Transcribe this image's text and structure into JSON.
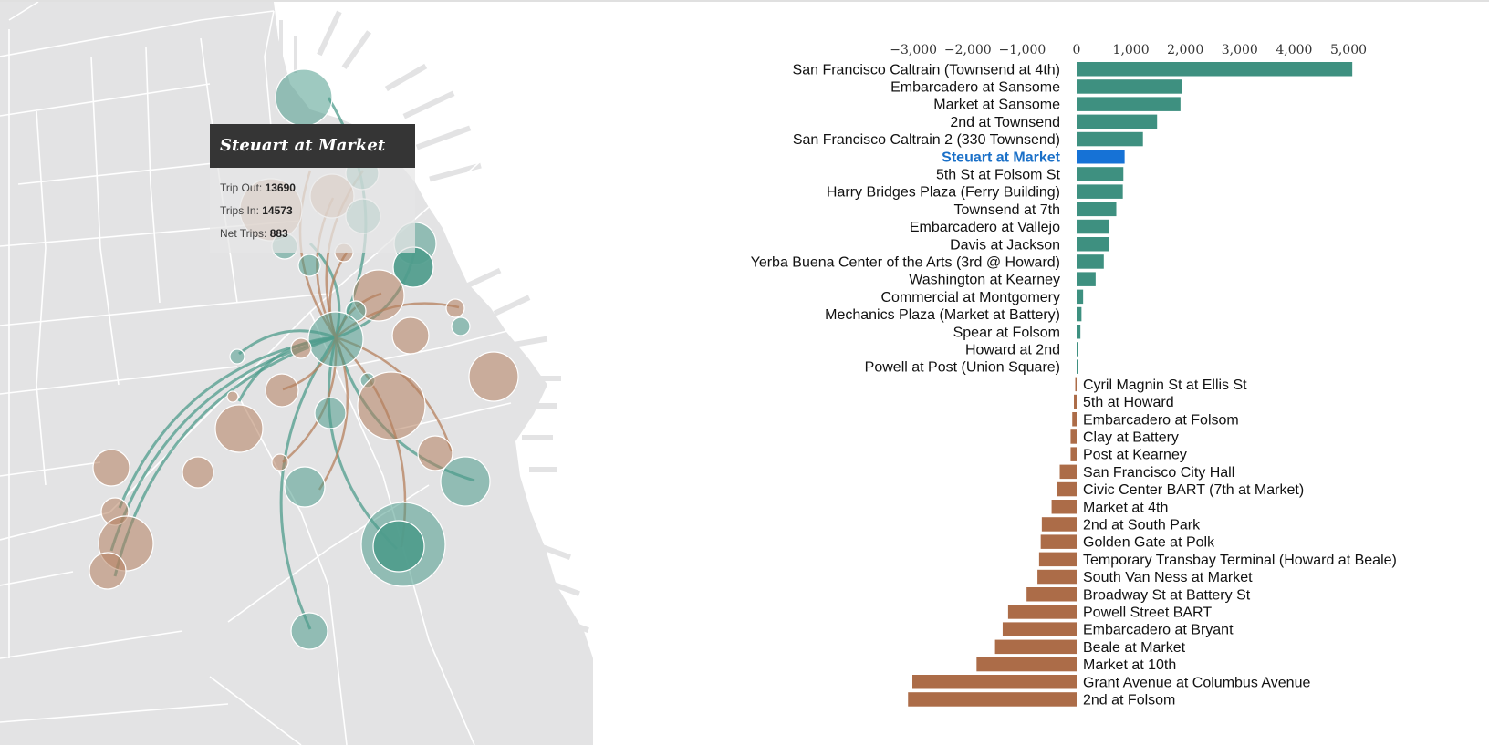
{
  "colors": {
    "positive": "#3e9080",
    "negative": "#ac6c48",
    "highlight_bar": "#1672d6",
    "highlight_text": "#1a70c8",
    "land": "#e3e3e4",
    "street": "#ffffff",
    "flow_out": "#4f9c8c",
    "flow_in": "#b5805e"
  },
  "tooltip": {
    "station": "Steuart at Market",
    "trip_out_label": "Trip Out:",
    "trip_out_value": "13690",
    "trips_in_label": "Trips In:",
    "trips_in_value": "14573",
    "net_label": "Net Trips:",
    "net_value": "883"
  },
  "chart_data": {
    "type": "bar",
    "orientation": "horizontal",
    "title": "",
    "xlabel": "",
    "ylabel": "",
    "xlim": [
      -3000,
      5000
    ],
    "x_ticks": [
      "−3,000",
      "−2,000",
      "−1,000",
      "0",
      "1,000",
      "2,000",
      "3,000",
      "4,000",
      "5,000"
    ],
    "x_tick_values": [
      -3000,
      -2000,
      -1000,
      0,
      1000,
      2000,
      3000,
      4000,
      5000
    ],
    "highlighted": "Steuart at Market",
    "categories": [
      "San Francisco Caltrain (Townsend at 4th)",
      "Embarcadero at Sansome",
      "Market at Sansome",
      "2nd at Townsend",
      "San Francisco Caltrain 2 (330 Townsend)",
      "Steuart at Market",
      "5th St at Folsom St",
      "Harry Bridges Plaza (Ferry Building)",
      "Townsend at 7th",
      "Embarcadero at Vallejo",
      "Davis at Jackson",
      "Yerba Buena Center of the Arts (3rd @ Howard)",
      "Washington at Kearney",
      "Commercial at Montgomery",
      "Mechanics Plaza (Market at Battery)",
      "Spear at Folsom",
      "Howard at 2nd",
      "Powell at Post (Union Square)",
      "Cyril Magnin St at Ellis St",
      "5th at Howard",
      "Embarcadero at Folsom",
      "Clay at Battery",
      "Post at Kearney",
      "San Francisco City Hall",
      "Civic Center BART (7th at Market)",
      "Market at 4th",
      "2nd at South Park",
      "Golden Gate at Polk",
      "Temporary Transbay Terminal (Howard at Beale)",
      "South Van Ness at Market",
      "Broadway St at Battery St",
      "Powell Street BART",
      "Embarcadero at Bryant",
      "Beale at Market",
      "Market at 10th",
      "Grant Avenue at Columbus Avenue",
      "2nd at Folsom"
    ],
    "values": [
      5070,
      1930,
      1910,
      1480,
      1220,
      883,
      860,
      850,
      730,
      600,
      590,
      500,
      350,
      120,
      90,
      70,
      30,
      20,
      -20,
      -50,
      -80,
      -110,
      -110,
      -310,
      -360,
      -460,
      -640,
      -660,
      -690,
      -720,
      -920,
      -1260,
      -1360,
      -1500,
      -1840,
      -3020,
      -3100
    ]
  }
}
